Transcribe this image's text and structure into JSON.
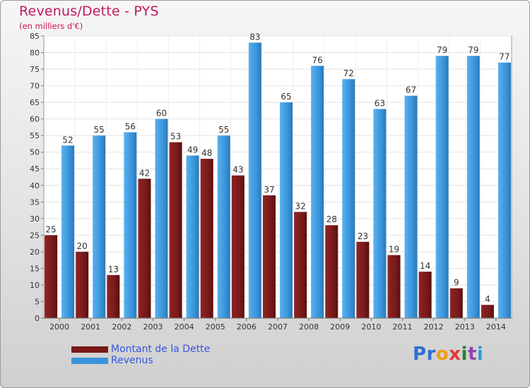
{
  "title": "Revenus/Dette - PYS",
  "subtitle": "(en milliers d'€)",
  "colors": {
    "debt": "#7a1a1a",
    "revenue": "#3a95dc"
  },
  "logo": {
    "text": "Proxiti",
    "letters": [
      "P",
      "r",
      "o",
      "x",
      "i",
      "t",
      "i"
    ]
  },
  "chart_data": {
    "type": "bar",
    "categories": [
      "2000",
      "2001",
      "2002",
      "2003",
      "2004",
      "2005",
      "2006",
      "2007",
      "2008",
      "2009",
      "2010",
      "2011",
      "2012",
      "2013",
      "2014"
    ],
    "series": [
      {
        "name": "Montant de la Dette",
        "values": [
          25,
          20,
          13,
          42,
          53,
          48,
          43,
          37,
          32,
          28,
          23,
          19,
          14,
          9,
          4
        ]
      },
      {
        "name": "Revenus",
        "values": [
          52,
          55,
          56,
          60,
          49,
          55,
          83,
          65,
          76,
          72,
          63,
          67,
          79,
          79,
          77
        ]
      }
    ],
    "ylim": [
      0,
      85
    ],
    "yticks": [
      "0",
      "5",
      "10",
      "15",
      "20",
      "25",
      "30",
      "35",
      "40",
      "45",
      "50",
      "55",
      "60",
      "65",
      "70",
      "75",
      "80",
      "85"
    ],
    "grid": true,
    "legend": "bottom-left"
  }
}
